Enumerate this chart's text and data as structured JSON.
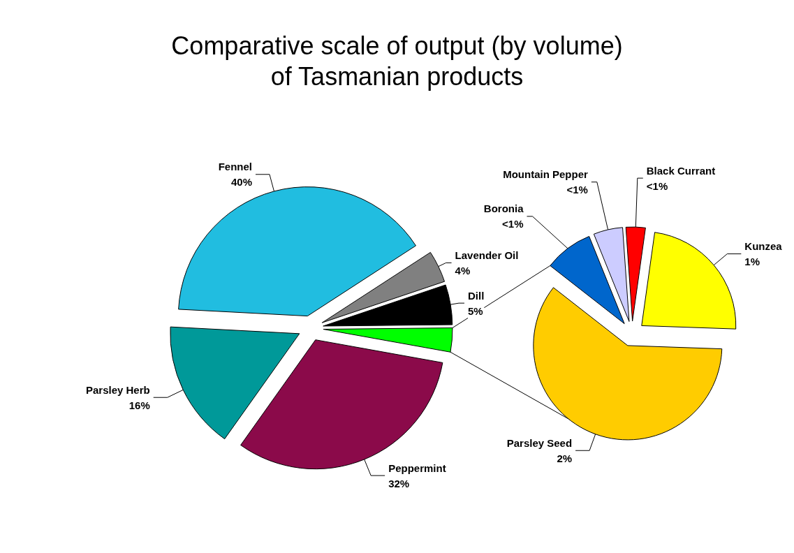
{
  "chart_data": [
    {
      "type": "pie",
      "title": "Comparative scale of output (by volume)\nof Tasmanian products",
      "categories": [
        "Fennel",
        "Lavender Oil",
        "Dill",
        null,
        "Peppermint",
        "Parsley Herb"
      ],
      "values": [
        40,
        4,
        5,
        3,
        32,
        16
      ],
      "value_labels": [
        "40%",
        "4%",
        "5%",
        null,
        "32%",
        "16%"
      ],
      "colors": [
        "#21bde0",
        "#808080",
        "#000000",
        "#00ff00",
        "#8b0a4a",
        "#009999"
      ]
    },
    {
      "type": "pie",
      "categories": [
        "Kunzea",
        "Parsley Seed",
        "Boronia",
        "Mountain Pepper",
        "Black Currant"
      ],
      "values": [
        0.7,
        1.8,
        0.25,
        0.15,
        0.1
      ],
      "value_labels": [
        "1%",
        "2%",
        "<1%",
        "<1%",
        "<1%"
      ],
      "colors": [
        "#ffff00",
        "#ffcc00",
        "#0066cc",
        "#ccccff",
        "#ff0000"
      ]
    }
  ]
}
